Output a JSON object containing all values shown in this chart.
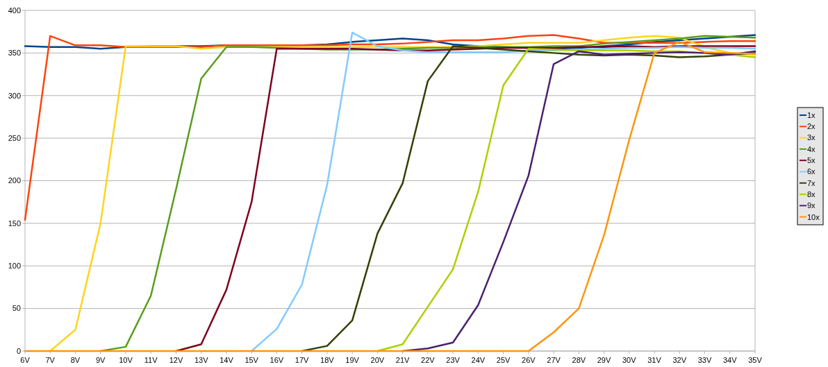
{
  "chart_data": {
    "type": "line",
    "categories": [
      "6V",
      "7V",
      "8V",
      "9V",
      "10V",
      "11V",
      "12V",
      "13V",
      "14V",
      "15V",
      "16V",
      "17V",
      "18V",
      "19V",
      "20V",
      "21V",
      "22V",
      "23V",
      "24V",
      "25V",
      "26V",
      "27V",
      "28V",
      "29V",
      "30V",
      "31V",
      "32V",
      "33V",
      "34V",
      "35V"
    ],
    "ylim": [
      0,
      400
    ],
    "yticks": [
      0,
      50,
      100,
      150,
      200,
      250,
      300,
      350,
      400
    ],
    "grid": "y",
    "legend": "right",
    "marker": "none",
    "line_style": "solid",
    "series": [
      {
        "name": "1x",
        "color": "#004586",
        "values": [
          358,
          357,
          357,
          355,
          357,
          358,
          358,
          358,
          359,
          359,
          359,
          359,
          360,
          363,
          365,
          367,
          365,
          360,
          358,
          357,
          356,
          355,
          356,
          358,
          360,
          363,
          365,
          367,
          369,
          371
        ]
      },
      {
        "name": "2x",
        "color": "#ff420e",
        "values": [
          154,
          370,
          359,
          359,
          357,
          357,
          357,
          357,
          359,
          359,
          359,
          359,
          359,
          360,
          360,
          361,
          363,
          365,
          365,
          367,
          370,
          371,
          367,
          362,
          362,
          362,
          362,
          363,
          364,
          364
        ]
      },
      {
        "name": "3x",
        "color": "#ffd320",
        "values": [
          null,
          0,
          25,
          150,
          358,
          358,
          358,
          355,
          357,
          357,
          357,
          357,
          357,
          357,
          357,
          357,
          357,
          357,
          358,
          360,
          362,
          362,
          362,
          365,
          368,
          370,
          368,
          357,
          350,
          348
        ]
      },
      {
        "name": "4x",
        "color": "#579d1c",
        "values": [
          null,
          null,
          null,
          0,
          5,
          65,
          190,
          320,
          357,
          357,
          356,
          355,
          354,
          354,
          354,
          355,
          356,
          356,
          357,
          357,
          357,
          358,
          358,
          361,
          363,
          365,
          367,
          370,
          369,
          368
        ]
      },
      {
        "name": "5x",
        "color": "#7e0021",
        "values": [
          null,
          null,
          null,
          null,
          null,
          null,
          0,
          8,
          72,
          175,
          355,
          355,
          355,
          355,
          354,
          353,
          353,
          354,
          355,
          356,
          356,
          356,
          357,
          357,
          358,
          357,
          358,
          358,
          358,
          358
        ]
      },
      {
        "name": "6x",
        "color": "#83caff",
        "values": [
          null,
          null,
          null,
          null,
          null,
          null,
          null,
          null,
          null,
          0,
          26,
          78,
          195,
          374,
          358,
          353,
          351,
          351,
          351,
          351,
          353,
          353,
          354,
          355,
          356,
          356,
          357,
          356,
          356,
          355
        ]
      },
      {
        "name": "7x",
        "color": "#314004",
        "values": [
          null,
          null,
          null,
          null,
          null,
          null,
          null,
          null,
          null,
          null,
          null,
          0,
          6,
          36,
          138,
          197,
          317,
          358,
          356,
          354,
          352,
          350,
          348,
          347,
          348,
          347,
          345,
          346,
          348,
          350
        ]
      },
      {
        "name": "8x",
        "color": "#aecf00",
        "values": [
          null,
          null,
          null,
          null,
          null,
          null,
          null,
          null,
          null,
          null,
          null,
          null,
          null,
          null,
          0,
          8,
          52,
          96,
          187,
          312,
          355,
          354,
          353,
          353,
          353,
          352,
          352,
          350,
          348,
          345
        ]
      },
      {
        "name": "9x",
        "color": "#4b1f6f",
        "values": [
          null,
          null,
          null,
          null,
          null,
          null,
          null,
          null,
          null,
          null,
          null,
          null,
          null,
          null,
          null,
          0,
          3,
          10,
          54,
          128,
          206,
          337,
          352,
          348,
          349,
          350,
          351,
          350,
          348,
          352
        ]
      },
      {
        "name": "10x",
        "color": "#ff950e",
        "values": [
          0,
          0,
          0,
          0,
          0,
          0,
          0,
          0,
          0,
          0,
          0,
          0,
          0,
          0,
          0,
          0,
          0,
          0,
          0,
          0,
          0,
          22,
          50,
          136,
          248,
          350,
          363,
          351,
          350,
          349
        ]
      }
    ]
  }
}
